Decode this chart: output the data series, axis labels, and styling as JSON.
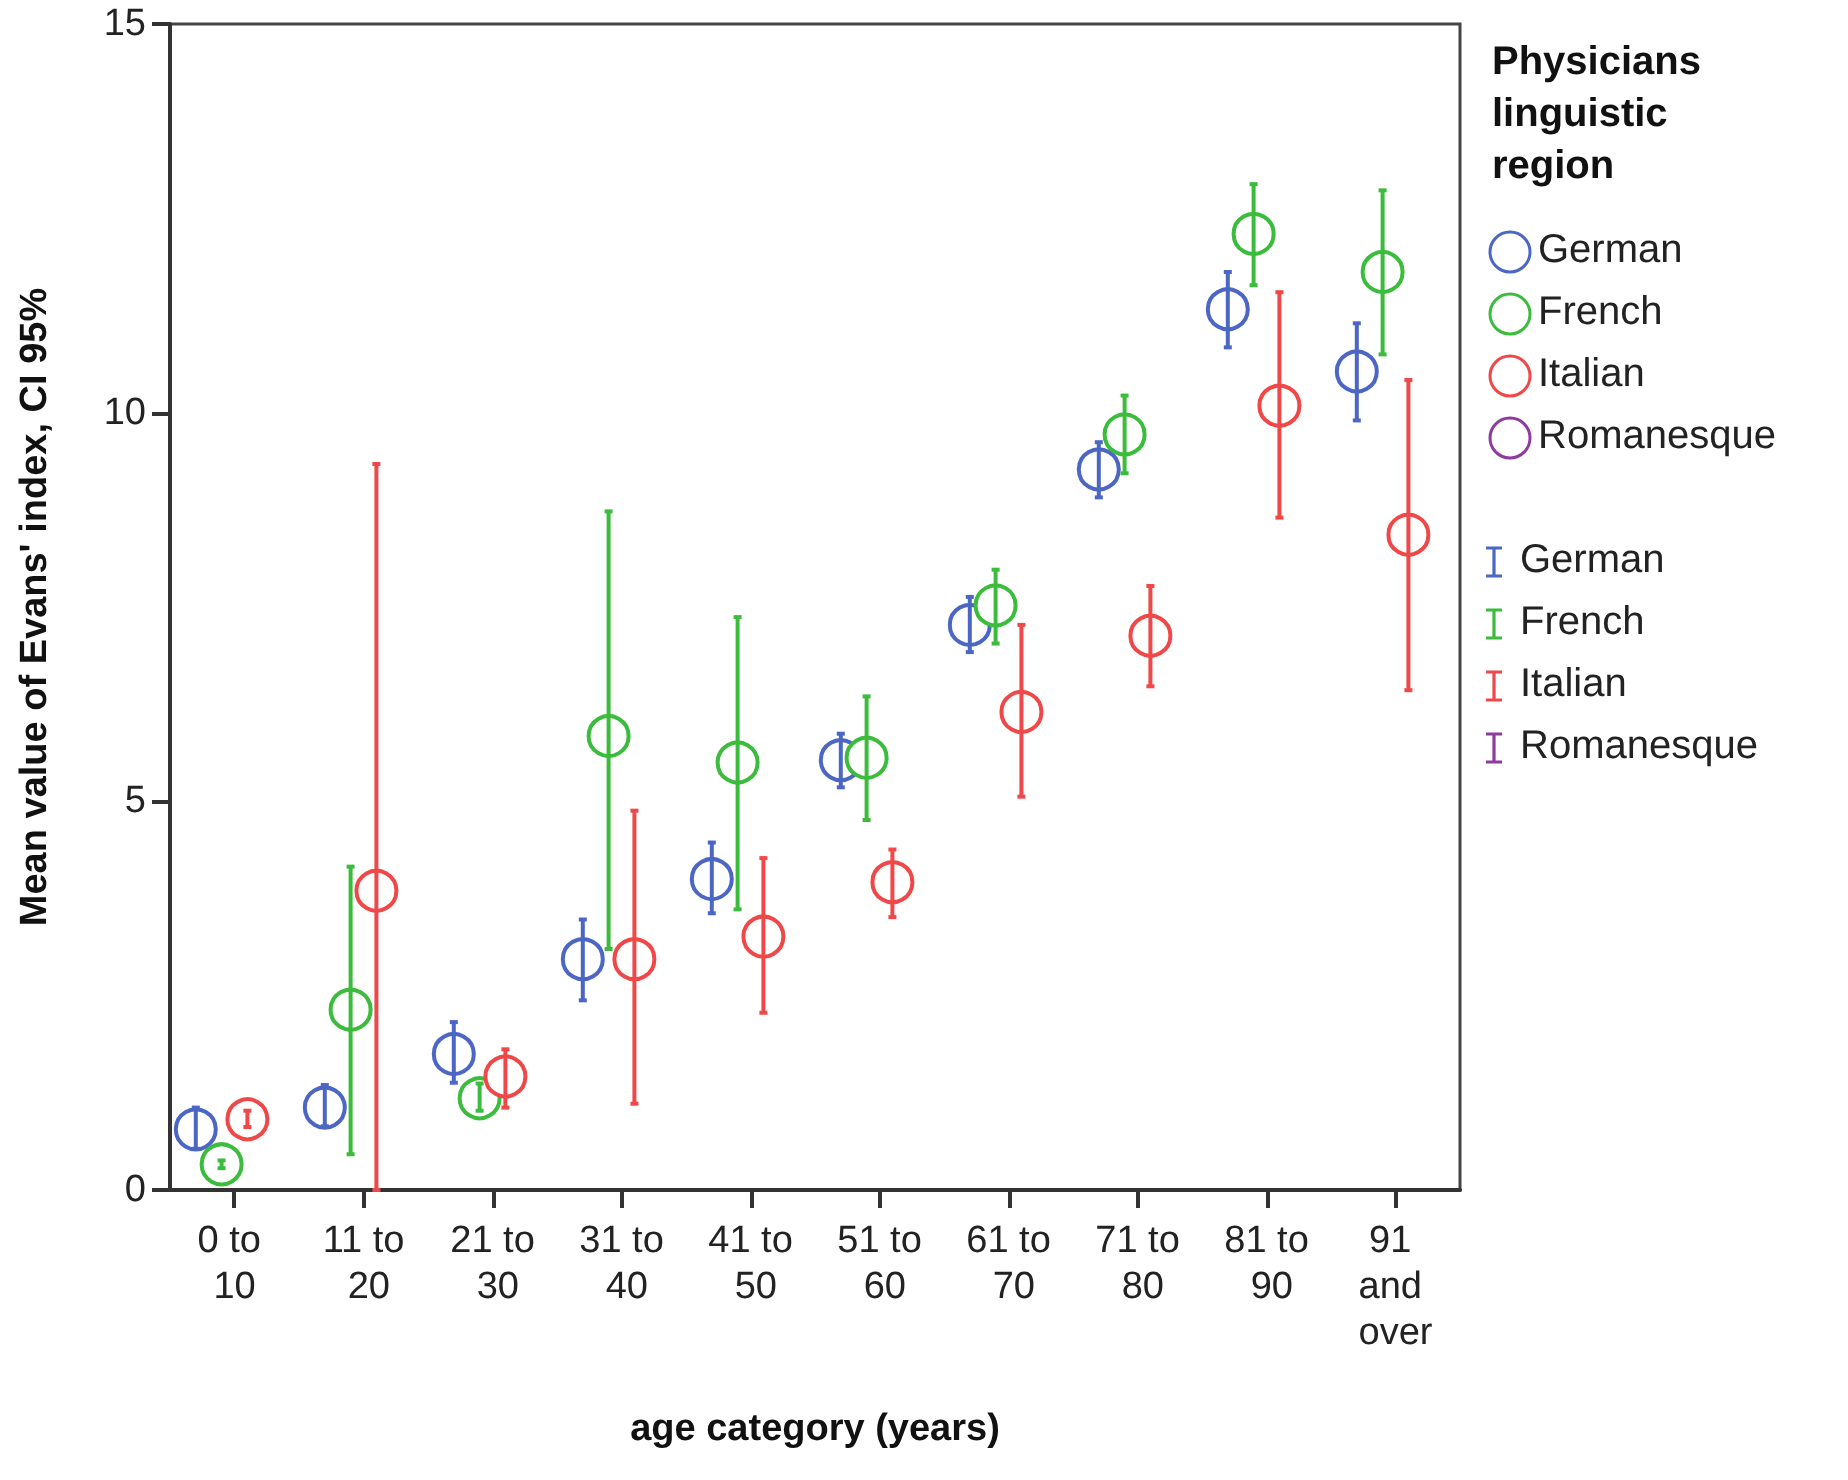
{
  "chart_data": {
    "type": "scatter",
    "xlabel": "age category (years)",
    "ylabel": "Mean value of Evans' index, CI 95%",
    "legend_title": "Physicians linguistic region",
    "legend": "right",
    "marker": "circle",
    "grid": false,
    "categories": [
      "0 to 10",
      "11 to 20",
      "21 to 30",
      "31 to 40",
      "41 to 50",
      "51 to 60",
      "61 to 70",
      "71 to 80",
      "81 to 90",
      "91 and over"
    ],
    "ylim": [
      0,
      15
    ],
    "yticks": [
      0,
      5,
      10,
      15
    ],
    "series": [
      {
        "name": "German",
        "color": "#4b66c4",
        "values": [
          0.78,
          1.06,
          1.75,
          2.97,
          4.0,
          5.53,
          7.27,
          9.27,
          11.33,
          10.53
        ],
        "errors": [
          [
            0.53,
            1.06
          ],
          [
            0.82,
            1.35
          ],
          [
            1.38,
            2.16
          ],
          [
            2.44,
            3.48
          ],
          [
            3.56,
            4.47
          ],
          [
            5.18,
            5.87
          ],
          [
            6.92,
            7.63
          ],
          [
            8.91,
            9.62
          ],
          [
            10.84,
            11.81
          ],
          [
            9.9,
            11.15
          ]
        ]
      },
      {
        "name": "French",
        "color": "#3cbc3c",
        "values": [
          0.33,
          2.32,
          1.18,
          5.84,
          5.5,
          5.56,
          7.52,
          9.72,
          12.3,
          11.81
        ],
        "errors": [
          [
            0.28,
            0.38
          ],
          [
            0.46,
            4.16
          ],
          [
            1.02,
            1.37
          ],
          [
            3.1,
            8.73
          ],
          [
            3.61,
            7.37
          ],
          [
            4.76,
            6.35
          ],
          [
            7.03,
            7.98
          ],
          [
            9.22,
            10.22
          ],
          [
            11.64,
            12.94
          ],
          [
            10.75,
            12.86
          ]
        ]
      },
      {
        "name": "Italian",
        "color": "#f04848",
        "values": [
          0.91,
          3.85,
          1.46,
          2.97,
          3.26,
          3.96,
          6.15,
          7.13,
          10.09,
          8.43
        ],
        "errors": [
          [
            0.81,
            1.02
          ],
          [
            0,
            9.34
          ],
          [
            1.06,
            1.81
          ],
          [
            1.11,
            4.88
          ],
          [
            2.28,
            4.27
          ],
          [
            3.51,
            4.38
          ],
          [
            5.06,
            7.27
          ],
          [
            6.48,
            7.77
          ],
          [
            8.65,
            11.55
          ],
          [
            6.43,
            10.42
          ]
        ]
      },
      {
        "name": "Romanesque",
        "color": "#8e3a9e",
        "values": [
          null,
          null,
          null,
          null,
          null,
          null,
          null,
          null,
          null,
          null
        ]
      }
    ]
  }
}
